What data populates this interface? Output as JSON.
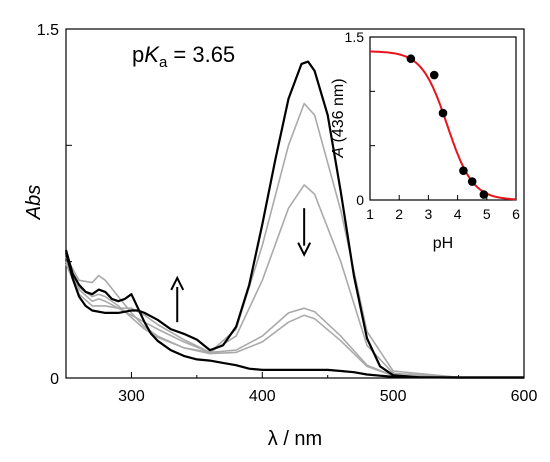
{
  "chart_data": [
    {
      "type": "line",
      "annotation": {
        "prefix": "p",
        "K": "K",
        "sub": "a",
        "rest": " = 3.65"
      },
      "xlabel": "λ / nm",
      "ylabel": "Abs",
      "xlim": [
        250,
        600
      ],
      "ylim": [
        0,
        1.5
      ],
      "x_ticks": [
        "300",
        "400",
        "500",
        "600"
      ],
      "y_ticks": [
        "0",
        "1.5"
      ],
      "colors": {
        "bold": "#000000",
        "intermediate": "#aaaaaa"
      },
      "arrows": [
        {
          "direction": "up",
          "x": 335,
          "y_from": 0.24,
          "y_to": 0.43
        },
        {
          "direction": "down",
          "x": 432,
          "y_from": 0.73,
          "y_to": 0.53
        }
      ],
      "series": [
        {
          "style": "bold",
          "x": [
            250,
            255,
            260,
            265,
            270,
            275,
            280,
            285,
            290,
            295,
            300,
            305,
            310,
            315,
            320,
            330,
            340,
            350,
            360,
            370,
            380,
            390,
            400,
            410,
            420,
            430,
            440,
            450,
            460,
            470,
            480,
            490,
            500,
            520,
            550,
            600
          ],
          "y": [
            0.55,
            0.45,
            0.4,
            0.37,
            0.36,
            0.38,
            0.37,
            0.34,
            0.33,
            0.34,
            0.36,
            0.3,
            0.24,
            0.19,
            0.16,
            0.12,
            0.095,
            0.08,
            0.075,
            0.065,
            0.055,
            0.04,
            0.035,
            0.035,
            0.035,
            0.035,
            0.035,
            0.035,
            0.03,
            0.025,
            0.015,
            0.01,
            0.005,
            0.003,
            0.002,
            0.002
          ]
        },
        {
          "style": "intermediate",
          "x": [
            250,
            260,
            270,
            275,
            280,
            290,
            300,
            310,
            320,
            340,
            360,
            380,
            400,
            420,
            432,
            440,
            460,
            480,
            500,
            550,
            600
          ],
          "y": [
            0.5,
            0.39,
            0.35,
            0.36,
            0.35,
            0.31,
            0.26,
            0.21,
            0.175,
            0.13,
            0.105,
            0.11,
            0.155,
            0.24,
            0.27,
            0.255,
            0.16,
            0.05,
            0.01,
            0.003,
            0.002
          ]
        },
        {
          "style": "intermediate",
          "x": [
            250,
            260,
            270,
            275,
            280,
            290,
            300,
            310,
            320,
            340,
            360,
            380,
            400,
            420,
            432,
            440,
            460,
            480,
            500,
            550,
            600
          ],
          "y": [
            0.52,
            0.42,
            0.41,
            0.44,
            0.42,
            0.35,
            0.28,
            0.22,
            0.18,
            0.13,
            0.11,
            0.12,
            0.18,
            0.28,
            0.3,
            0.285,
            0.18,
            0.055,
            0.01,
            0.003,
            0.002
          ]
        },
        {
          "style": "intermediate",
          "x": [
            250,
            260,
            270,
            275,
            280,
            290,
            300,
            310,
            320,
            340,
            360,
            380,
            400,
            420,
            432,
            440,
            460,
            480,
            500,
            550,
            600
          ],
          "y": [
            0.5,
            0.38,
            0.33,
            0.34,
            0.33,
            0.3,
            0.27,
            0.24,
            0.21,
            0.155,
            0.11,
            0.18,
            0.42,
            0.73,
            0.83,
            0.79,
            0.5,
            0.14,
            0.02,
            0.003,
            0.002
          ]
        },
        {
          "style": "intermediate",
          "x": [
            250,
            260,
            270,
            275,
            280,
            290,
            300,
            310,
            320,
            340,
            360,
            380,
            400,
            420,
            432,
            440,
            460,
            480,
            500,
            550,
            600
          ],
          "y": [
            0.49,
            0.36,
            0.31,
            0.31,
            0.31,
            0.3,
            0.3,
            0.27,
            0.23,
            0.165,
            0.11,
            0.21,
            0.57,
            1.0,
            1.18,
            1.13,
            0.72,
            0.2,
            0.03,
            0.003,
            0.002
          ]
        },
        {
          "style": "bold",
          "x": [
            250,
            255,
            260,
            265,
            270,
            280,
            290,
            300,
            305,
            310,
            320,
            330,
            340,
            350,
            360,
            370,
            380,
            390,
            400,
            410,
            420,
            430,
            435,
            440,
            450,
            460,
            470,
            480,
            490,
            500,
            520,
            550,
            600
          ],
          "y": [
            0.54,
            0.43,
            0.35,
            0.31,
            0.29,
            0.28,
            0.28,
            0.29,
            0.29,
            0.28,
            0.25,
            0.21,
            0.19,
            0.165,
            0.12,
            0.14,
            0.22,
            0.4,
            0.66,
            0.94,
            1.2,
            1.35,
            1.36,
            1.32,
            1.13,
            0.8,
            0.44,
            0.17,
            0.05,
            0.012,
            0.003,
            0.002,
            0.002
          ]
        }
      ]
    },
    {
      "type": "scatter",
      "xlabel": "pH",
      "ylabel_prefix": "A",
      "ylabel_rest": " (436 nm)",
      "xlim": [
        1,
        6
      ],
      "ylim": [
        0,
        1.5
      ],
      "x_ticks": [
        "1",
        "2",
        "3",
        "4",
        "5",
        "6"
      ],
      "y_ticks": [
        "0",
        "1.5"
      ],
      "fit_color": "#e8141c",
      "fit": {
        "pKa": 3.65,
        "A_acid": 1.37,
        "A_base": 0.0
      },
      "points": {
        "x": [
          2.4,
          3.2,
          3.5,
          4.2,
          4.5,
          4.9
        ],
        "y": [
          1.3,
          1.15,
          0.8,
          0.27,
          0.17,
          0.05
        ]
      }
    }
  ]
}
